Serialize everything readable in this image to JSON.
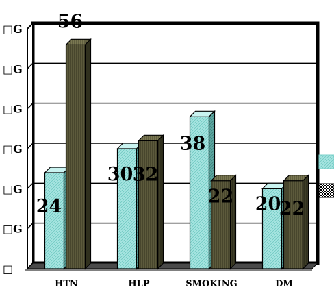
{
  "chart_data": {
    "type": "bar",
    "categories": [
      "HTN",
      "HLP",
      "SMOKING",
      "DM"
    ],
    "series": [
      {
        "values": [
          24,
          30,
          38,
          20
        ],
        "color": "#a8e6e2",
        "pattern": "diagonal-hatch"
      },
      {
        "values": [
          56,
          32,
          22,
          22
        ],
        "color": "#5c5a3c",
        "pattern": "vertical-stripe"
      }
    ],
    "data_labels": [
      "24",
      "56",
      "30",
      "32",
      "38",
      "22",
      "20",
      "22"
    ],
    "ylim": [
      0,
      60
    ],
    "y_tick_labels": [
      "□",
      "□G",
      "□G",
      "□G",
      "□G",
      "□G",
      "□G"
    ],
    "grid": true,
    "legend_placement": "right",
    "three_d": true
  }
}
